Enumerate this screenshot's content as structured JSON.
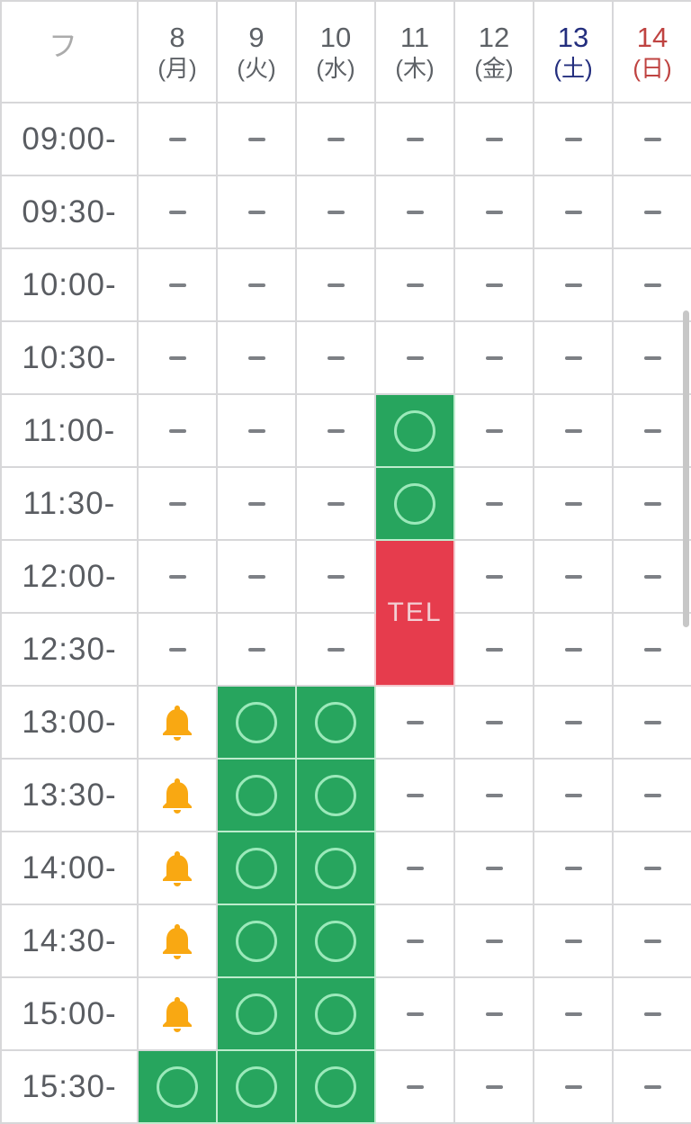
{
  "calendar": {
    "corner_mark": "フ",
    "tel_label": "TEL",
    "days": [
      {
        "date": "8",
        "weekday": "(月)",
        "type": "weekday"
      },
      {
        "date": "9",
        "weekday": "(火)",
        "type": "weekday"
      },
      {
        "date": "10",
        "weekday": "(水)",
        "type": "weekday"
      },
      {
        "date": "11",
        "weekday": "(木)",
        "type": "weekday"
      },
      {
        "date": "12",
        "weekday": "(金)",
        "type": "weekday"
      },
      {
        "date": "13",
        "weekday": "(土)",
        "type": "saturday"
      },
      {
        "date": "14",
        "weekday": "(日)",
        "type": "sunday"
      }
    ],
    "rows": [
      {
        "time": "09:00-",
        "cells": [
          "dash",
          "dash",
          "dash",
          "dash",
          "dash",
          "dash",
          "dash"
        ]
      },
      {
        "time": "09:30-",
        "cells": [
          "dash",
          "dash",
          "dash",
          "dash",
          "dash",
          "dash",
          "dash"
        ]
      },
      {
        "time": "10:00-",
        "cells": [
          "dash",
          "dash",
          "dash",
          "dash",
          "dash",
          "dash",
          "dash"
        ]
      },
      {
        "time": "10:30-",
        "cells": [
          "dash",
          "dash",
          "dash",
          "dash",
          "dash",
          "dash",
          "dash"
        ]
      },
      {
        "time": "11:00-",
        "cells": [
          "dash",
          "dash",
          "dash",
          "open",
          "dash",
          "dash",
          "dash"
        ]
      },
      {
        "time": "11:30-",
        "cells": [
          "dash",
          "dash",
          "dash",
          "open",
          "dash",
          "dash",
          "dash"
        ]
      },
      {
        "time": "12:00-",
        "cells": [
          "dash",
          "dash",
          "dash",
          "tel",
          "dash",
          "dash",
          "dash"
        ]
      },
      {
        "time": "12:30-",
        "cells": [
          "dash",
          "dash",
          "dash",
          "skip",
          "dash",
          "dash",
          "dash"
        ]
      },
      {
        "time": "13:00-",
        "cells": [
          "bell",
          "open",
          "open",
          "dash",
          "dash",
          "dash",
          "dash"
        ]
      },
      {
        "time": "13:30-",
        "cells": [
          "bell",
          "open",
          "open",
          "dash",
          "dash",
          "dash",
          "dash"
        ]
      },
      {
        "time": "14:00-",
        "cells": [
          "bell",
          "open",
          "open",
          "dash",
          "dash",
          "dash",
          "dash"
        ]
      },
      {
        "time": "14:30-",
        "cells": [
          "bell",
          "open",
          "open",
          "dash",
          "dash",
          "dash",
          "dash"
        ]
      },
      {
        "time": "15:00-",
        "cells": [
          "bell",
          "open",
          "open",
          "dash",
          "dash",
          "dash",
          "dash"
        ]
      },
      {
        "time": "15:30-",
        "cells": [
          "open",
          "open",
          "open",
          "dash",
          "dash",
          "dash",
          "dash"
        ]
      }
    ],
    "icons": {
      "available": "circle-outline-icon",
      "unavailable": "dash-icon",
      "notify": "bell-icon",
      "scrollbar": "scrollbar-thumb"
    },
    "colors": {
      "available_bg": "#27a55e",
      "available_ring": "#9be9ba",
      "tel_bg": "#e63c4d",
      "tel_text": "#f3ced3",
      "bell": "#f9a812",
      "saturday_text": "#232e7e",
      "sunday_text": "#bf4341",
      "weekday_text": "#5d6166",
      "time_text": "#595c61",
      "dash": "#7d8085",
      "grid_line": "#d7d7d9",
      "scrollbar": "#c7c7c7"
    }
  }
}
